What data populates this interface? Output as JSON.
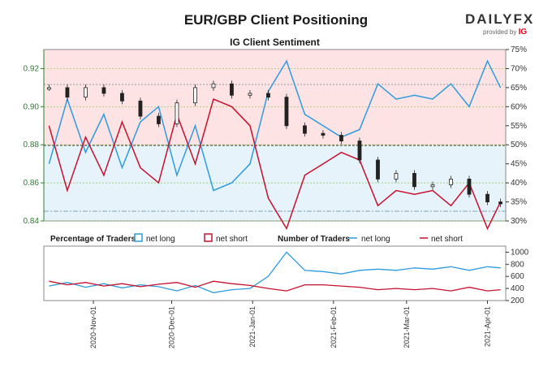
{
  "header": {
    "title": "EUR/GBP Client Positioning",
    "brand": "DAILYFX",
    "brand_sub": "provided by",
    "brand_sub_logo": "IG"
  },
  "colors": {
    "price_axis": "#2e7d32",
    "net_long": "#2e9be0",
    "net_short": "#c8102e",
    "bg_short_zone": "#fde3e3",
    "bg_long_zone": "#e6f3fb"
  },
  "chart_data": [
    {
      "type": "line",
      "title": "IG Client Sentiment",
      "x": [
        "2020-Oct-15",
        "2020-Oct-22",
        "2020-Oct-29",
        "2020-Nov-05",
        "2020-Nov-12",
        "2020-Nov-19",
        "2020-Nov-26",
        "2020-Dec-03",
        "2020-Dec-10",
        "2020-Dec-17",
        "2020-Dec-24",
        "2020-Dec-31",
        "2021-Jan-07",
        "2021-Jan-14",
        "2021-Jan-21",
        "2021-Jan-28",
        "2021-Feb-04",
        "2021-Feb-11",
        "2021-Feb-18",
        "2021-Feb-25",
        "2021-Mar-04",
        "2021-Mar-11",
        "2021-Mar-18",
        "2021-Mar-25",
        "2021-Apr-01",
        "2021-Apr-06"
      ],
      "series": [
        {
          "name": "EUR/GBP price",
          "axis": "left",
          "values": [
            0.91,
            0.905,
            0.91,
            0.907,
            0.903,
            0.895,
            0.891,
            0.902,
            0.91,
            0.912,
            0.906,
            0.907,
            0.905,
            0.89,
            0.886,
            0.885,
            0.882,
            0.872,
            0.862,
            0.865,
            0.858,
            0.859,
            0.862,
            0.854,
            0.85,
            0.849
          ]
        },
        {
          "name": "net long %",
          "axis": "right",
          "values": [
            45,
            62,
            48,
            58,
            44,
            56,
            60,
            42,
            55,
            38,
            40,
            45,
            64,
            72,
            58,
            55,
            52,
            54,
            66,
            62,
            63,
            62,
            66,
            60,
            72,
            65
          ]
        },
        {
          "name": "net short %",
          "axis": "right",
          "values": [
            55,
            38,
            52,
            42,
            56,
            44,
            40,
            58,
            45,
            62,
            60,
            55,
            36,
            28,
            42,
            45,
            48,
            46,
            34,
            38,
            37,
            38,
            34,
            40,
            28,
            35
          ]
        }
      ],
      "ylim_left": [
        0.84,
        0.93
      ],
      "yticks_left": [
        "0.92",
        "0.90",
        "0.88",
        "0.86",
        "0.84"
      ],
      "ylim_right": [
        30,
        75
      ],
      "yticks_right": [
        "75%",
        "70%",
        "65%",
        "60%",
        "55%",
        "50%",
        "45%",
        "40%",
        "35%",
        "30%"
      ]
    },
    {
      "type": "line",
      "title": "Number of Traders",
      "x": [
        "2020-Oct-15",
        "2020-Oct-22",
        "2020-Oct-29",
        "2020-Nov-05",
        "2020-Nov-12",
        "2020-Nov-19",
        "2020-Nov-26",
        "2020-Dec-03",
        "2020-Dec-10",
        "2020-Dec-17",
        "2020-Dec-24",
        "2020-Dec-31",
        "2021-Jan-07",
        "2021-Jan-14",
        "2021-Jan-21",
        "2021-Jan-28",
        "2021-Feb-04",
        "2021-Feb-11",
        "2021-Feb-18",
        "2021-Feb-25",
        "2021-Mar-04",
        "2021-Mar-11",
        "2021-Mar-18",
        "2021-Mar-25",
        "2021-Apr-01",
        "2021-Apr-06"
      ],
      "series": [
        {
          "name": "net long",
          "values": [
            440,
            500,
            420,
            480,
            410,
            460,
            430,
            360,
            450,
            330,
            380,
            400,
            600,
            1000,
            700,
            680,
            640,
            700,
            720,
            700,
            740,
            720,
            760,
            700,
            760,
            740
          ]
        },
        {
          "name": "net short",
          "values": [
            520,
            460,
            500,
            440,
            480,
            430,
            470,
            500,
            420,
            520,
            480,
            450,
            400,
            360,
            460,
            460,
            440,
            420,
            380,
            400,
            380,
            400,
            360,
            420,
            360,
            380
          ]
        }
      ],
      "ylim": [
        200,
        1100
      ],
      "yticks": [
        "1000",
        "800",
        "600",
        "400",
        "200"
      ]
    }
  ],
  "x_ticks": [
    "2020-Nov-01",
    "2020-Dec-01",
    "2021-Jan-01",
    "2021-Feb-01",
    "2021-Mar-01",
    "2021-Apr-01"
  ],
  "legend": {
    "pct_title": "Percentage of Traders",
    "pct_long": "net long",
    "pct_short": "net short",
    "num_title": "Number of Traders",
    "num_long": "net long",
    "num_short": "net short"
  }
}
